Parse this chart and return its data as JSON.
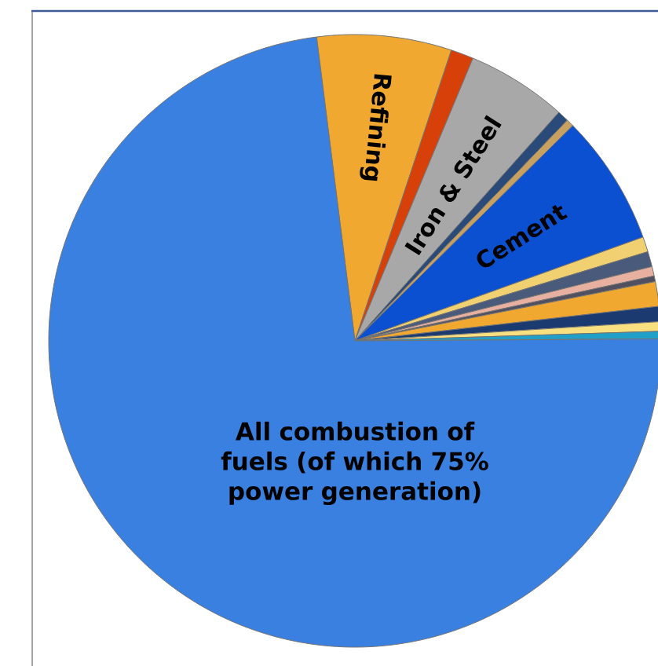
{
  "chart_data": {
    "type": "pie",
    "categories": [
      "Refining",
      null,
      "Iron & Steel",
      null,
      null,
      "Cement",
      null,
      null,
      null,
      null,
      null,
      null,
      null,
      null,
      "All combustion of fuels (of which 75% power generation)"
    ],
    "values": [
      7.1,
      1.2,
      5.3,
      0.6,
      0.4,
      6.9,
      0.8,
      0.8,
      0.5,
      0.3,
      1.3,
      0.8,
      0.5,
      0.4,
      73.1
    ],
    "colors": [
      "#f0a830",
      "#d8400a",
      "#a8a8a8",
      "#2a4a7a",
      "#c8a060",
      "#0a50d0",
      "#f0d070",
      "#4a5a7a",
      "#e8b0a0",
      "#505060",
      "#f0a830",
      "#1a3a70",
      "#f8e080",
      "#20a0c8",
      "#3a80e0"
    ]
  }
}
